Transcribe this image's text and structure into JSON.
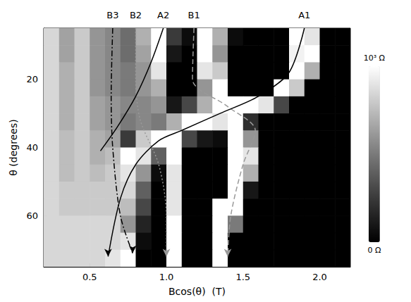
{
  "chart_data": {
    "type": "heatmap",
    "x_label": "Bcos(θ)  (T)",
    "y_label": "θ (degrees)",
    "xlim": [
      0.2,
      2.2
    ],
    "xticks": [
      0.5,
      {
        "value": 1,
        "label": "1.0"
      },
      1.5,
      {
        "value": 2,
        "label": "2.0"
      }
    ],
    "ylim": [
      5,
      75
    ],
    "yticks": [
      20,
      40,
      60
    ],
    "cells": {
      "x": [
        0.25,
        0.35,
        0.45,
        0.55,
        0.65,
        0.75,
        0.85,
        0.95,
        1.05,
        1.15,
        1.25,
        1.35,
        1.45,
        1.55,
        1.65,
        1.75,
        1.85,
        1.95,
        2.05,
        2.15
      ],
      "y": [
        7.5,
        12.5,
        17.5,
        22.5,
        27.5,
        32.5,
        37.5,
        42.5,
        47.5,
        52.5,
        57.5,
        62.5,
        67.5,
        72.5
      ],
      "values": [
        [
          850,
          650,
          800,
          600,
          550,
          450,
          700,
          1000,
          250,
          50,
          1000,
          700,
          50,
          0,
          0,
          0,
          1000,
          900,
          0,
          0
        ],
        [
          850,
          650,
          800,
          600,
          550,
          450,
          650,
          1000,
          100,
          0,
          1000,
          600,
          0,
          0,
          0,
          0,
          950,
          1000,
          0,
          0
        ],
        [
          850,
          700,
          800,
          600,
          550,
          500,
          600,
          900,
          0,
          0,
          900,
          800,
          0,
          0,
          0,
          0,
          1000,
          700,
          0,
          0
        ],
        [
          850,
          700,
          800,
          600,
          550,
          500,
          600,
          700,
          0,
          0,
          600,
          1000,
          0,
          0,
          0,
          1000,
          800,
          0,
          0,
          0
        ],
        [
          850,
          700,
          800,
          650,
          600,
          550,
          550,
          600,
          100,
          300,
          700,
          1000,
          1000,
          1000,
          900,
          300,
          0,
          0,
          0,
          0
        ],
        [
          850,
          700,
          800,
          650,
          600,
          500,
          550,
          500,
          700,
          1000,
          1000,
          900,
          1000,
          200,
          0,
          0,
          0,
          0,
          0,
          0
        ],
        [
          850,
          750,
          800,
          700,
          650,
          250,
          800,
          1000,
          1000,
          300,
          100,
          50,
          1000,
          600,
          0,
          0,
          0,
          0,
          0,
          0
        ],
        [
          850,
          750,
          800,
          700,
          750,
          1000,
          900,
          400,
          1000,
          0,
          0,
          0,
          1000,
          900,
          0,
          0,
          0,
          0,
          0,
          0
        ],
        [
          850,
          750,
          800,
          750,
          800,
          900,
          600,
          50,
          900,
          0,
          0,
          0,
          1000,
          700,
          0,
          0,
          0,
          0,
          0,
          0
        ],
        [
          850,
          800,
          800,
          800,
          800,
          850,
          400,
          0,
          900,
          0,
          0,
          0,
          1000,
          100,
          0,
          0,
          0,
          0,
          0,
          0
        ],
        [
          850,
          800,
          800,
          800,
          800,
          750,
          300,
          0,
          900,
          0,
          0,
          1000,
          1000,
          0,
          0,
          0,
          0,
          0,
          0,
          0
        ],
        [
          850,
          850,
          850,
          850,
          850,
          600,
          150,
          0,
          1000,
          0,
          0,
          1000,
          500,
          0,
          0,
          0,
          0,
          0,
          0,
          0
        ],
        [
          850,
          850,
          850,
          850,
          850,
          900,
          50,
          0,
          1000,
          0,
          0,
          1000,
          0,
          0,
          0,
          0,
          0,
          0,
          0,
          0
        ],
        [
          850,
          850,
          850,
          850,
          900,
          1000,
          0,
          0,
          1000,
          0,
          0,
          1000,
          0,
          0,
          0,
          0,
          0,
          0,
          0,
          0
        ]
      ]
    },
    "colorbar": {
      "range": [
        0,
        1000
      ],
      "ticks": [
        {
          "value": 1000,
          "label": "10³ Ω"
        },
        {
          "value": 0,
          "label": "0 Ω"
        }
      ]
    },
    "series": [
      {
        "name": "B3",
        "line_style": "dashdot",
        "color": "#000000",
        "marker": "arrow",
        "x": [
          0.65,
          0.64,
          0.65,
          0.7,
          0.78
        ],
        "y": [
          5,
          25,
          40,
          60,
          71
        ]
      },
      {
        "name": "B2",
        "line_style": "dotted",
        "color": "#999999",
        "marker": "arrow",
        "x": [
          0.8,
          0.8,
          0.83,
          0.95,
          1.0,
          1.0
        ],
        "y": [
          5,
          20,
          32,
          45,
          60,
          72
        ]
      },
      {
        "name": "A2",
        "line_style": "solid",
        "color": "#000000",
        "marker": "none",
        "x": [
          0.98,
          0.9,
          0.8,
          0.68,
          0.57
        ],
        "y": [
          5,
          15,
          25,
          34,
          41
        ]
      },
      {
        "name": "B1",
        "line_style": "dashed",
        "color": "#999999",
        "marker": "arrow",
        "x": [
          1.18,
          1.17,
          1.4,
          1.58,
          1.5,
          1.42,
          1.4
        ],
        "y": [
          5,
          20,
          28,
          35,
          45,
          60,
          72
        ]
      },
      {
        "name": "A1",
        "line_style": "solid",
        "color": "#000000",
        "marker": "arrow",
        "x": [
          1.9,
          1.8,
          1.6,
          1.35,
          1.1,
          0.95,
          0.8,
          0.7,
          0.62
        ],
        "y": [
          5,
          18,
          25,
          30,
          35,
          38,
          45,
          55,
          72
        ]
      }
    ]
  }
}
